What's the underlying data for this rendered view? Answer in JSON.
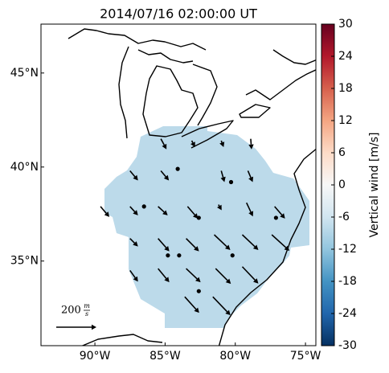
{
  "chart_data": {
    "type": "quiver",
    "title": "2014/07/16 02:00:00 UT",
    "xlim": [
      -93.84,
      -74.26
    ],
    "ylim": [
      30.5,
      47.6
    ],
    "xticks": [
      {
        "value": -90,
        "label": "90°W"
      },
      {
        "value": -85,
        "label": "85°W"
      },
      {
        "value": -80,
        "label": "80°W"
      },
      {
        "value": -75,
        "label": "75°W"
      }
    ],
    "yticks": [
      {
        "value": 35,
        "label": "35°N"
      },
      {
        "value": 40,
        "label": "40°N"
      },
      {
        "value": 45,
        "label": "45°N"
      }
    ],
    "field_value": -8,
    "colorbar": {
      "label": "Vertical wind [m/s]",
      "lim": [
        -30,
        30
      ],
      "ticks": [
        -30,
        -24,
        -18,
        -12,
        -6,
        0,
        6,
        12,
        18,
        24,
        30
      ]
    },
    "scale_key": {
      "value": 200,
      "unit_num": "m",
      "unit_den": "s"
    },
    "color": "#000000",
    "vectors": [
      {
        "lon": -85.3,
        "lat": 41.5,
        "u": 28,
        "v": -52
      },
      {
        "lon": -83.1,
        "lat": 41.4,
        "u": 16,
        "v": -32
      },
      {
        "lon": -81.0,
        "lat": 41.4,
        "u": 12,
        "v": -32
      },
      {
        "lon": -78.9,
        "lat": 41.5,
        "u": 4,
        "v": -52
      },
      {
        "lon": -87.5,
        "lat": 39.8,
        "u": 40,
        "v": -48
      },
      {
        "lon": -85.3,
        "lat": 39.8,
        "u": 40,
        "v": -48
      },
      {
        "lon": -81.0,
        "lat": 39.8,
        "u": 16,
        "v": -56
      },
      {
        "lon": -79.1,
        "lat": 39.8,
        "u": 24,
        "v": -56
      },
      {
        "lon": -84.1,
        "lat": 39.9,
        "u": 0,
        "v": 0
      },
      {
        "lon": -80.3,
        "lat": 39.2,
        "u": 0,
        "v": 0
      },
      {
        "lon": -89.6,
        "lat": 37.9,
        "u": 44,
        "v": -52
      },
      {
        "lon": -87.5,
        "lat": 37.9,
        "u": 40,
        "v": -44
      },
      {
        "lon": -85.5,
        "lat": 37.9,
        "u": 48,
        "v": -44
      },
      {
        "lon": -83.4,
        "lat": 37.9,
        "u": 52,
        "v": -60
      },
      {
        "lon": -81.2,
        "lat": 38.0,
        "u": 16,
        "v": -28
      },
      {
        "lon": -79.2,
        "lat": 38.1,
        "u": 32,
        "v": -68
      },
      {
        "lon": -77.2,
        "lat": 37.9,
        "u": 52,
        "v": -60
      },
      {
        "lon": -86.5,
        "lat": 37.9,
        "u": 0,
        "v": 0
      },
      {
        "lon": -82.6,
        "lat": 37.3,
        "u": 0,
        "v": 0
      },
      {
        "lon": -77.1,
        "lat": 37.3,
        "u": 0,
        "v": 0
      },
      {
        "lon": -87.5,
        "lat": 36.2,
        "u": 40,
        "v": -40
      },
      {
        "lon": -85.5,
        "lat": 36.2,
        "u": 56,
        "v": -64
      },
      {
        "lon": -83.5,
        "lat": 36.2,
        "u": 64,
        "v": -64
      },
      {
        "lon": -81.5,
        "lat": 36.4,
        "u": 80,
        "v": -76
      },
      {
        "lon": -79.5,
        "lat": 36.4,
        "u": 80,
        "v": -76
      },
      {
        "lon": -77.4,
        "lat": 36.4,
        "u": 88,
        "v": -80
      },
      {
        "lon": -84.8,
        "lat": 35.3,
        "u": 0,
        "v": 0
      },
      {
        "lon": -84.0,
        "lat": 35.3,
        "u": 0,
        "v": 0
      },
      {
        "lon": -80.2,
        "lat": 35.3,
        "u": 0,
        "v": 0
      },
      {
        "lon": -87.5,
        "lat": 34.5,
        "u": 40,
        "v": -56
      },
      {
        "lon": -85.5,
        "lat": 34.6,
        "u": 56,
        "v": -68
      },
      {
        "lon": -83.5,
        "lat": 34.6,
        "u": 72,
        "v": -68
      },
      {
        "lon": -81.4,
        "lat": 34.6,
        "u": 76,
        "v": -76
      },
      {
        "lon": -79.5,
        "lat": 34.7,
        "u": 80,
        "v": -84
      },
      {
        "lon": -82.6,
        "lat": 33.4,
        "u": 0,
        "v": 0
      },
      {
        "lon": -83.6,
        "lat": 33.1,
        "u": 72,
        "v": -80
      },
      {
        "lon": -81.6,
        "lat": 33.1,
        "u": 88,
        "v": -92
      }
    ]
  }
}
